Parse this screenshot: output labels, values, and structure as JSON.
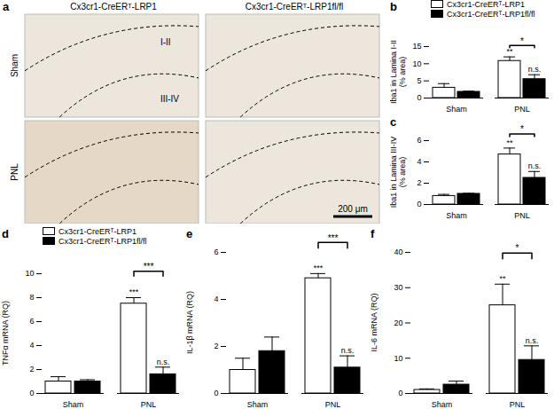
{
  "image_panel": {
    "label": "a",
    "columns": [
      "Cx3cr1-CreERᵀ-LRP1",
      "Cx3cr1-CreERᵀ-LRP1fl/fl"
    ],
    "rows": [
      "Sham",
      "PNL"
    ],
    "regions": [
      "I-II",
      "III-IV"
    ],
    "scale_bar": "200 μm"
  },
  "chart_data": [
    {
      "type": "bar",
      "label": "b",
      "y_label": [
        "Iba1 in Lamina I-II",
        "(% area)"
      ],
      "categories": [
        "Sham",
        "PNL"
      ],
      "series": [
        {
          "name": "Cx3cr1-CreERᵀ-LRP1",
          "color": "#ffffff",
          "values": [
            3.0,
            10.8
          ],
          "errors": [
            1.2,
            1.2
          ]
        },
        {
          "name": "Cx3cr1-CreERᵀ-LRP1fl/fl",
          "color": "#000000",
          "values": [
            1.8,
            5.5
          ],
          "errors": [
            0.2,
            1.3
          ]
        }
      ],
      "ylim": [
        0,
        15
      ],
      "yticks": [
        0,
        5,
        10,
        15
      ],
      "legend": "top",
      "annotations": [
        {
          "text": "**",
          "category": "PNL",
          "series": 0
        },
        {
          "text": "n.s.",
          "category": "PNL",
          "series": 1
        }
      ],
      "bracket": {
        "text": "*",
        "category": "PNL"
      }
    },
    {
      "type": "bar",
      "label": "c",
      "y_label": [
        "Iba1 in Lamina III-IV",
        "(% area)"
      ],
      "categories": [
        "Sham",
        "PNL"
      ],
      "series": [
        {
          "name": "Cx3cr1-CreERᵀ-LRP1",
          "color": "#ffffff",
          "values": [
            0.8,
            4.7
          ],
          "errors": [
            0.15,
            0.6
          ]
        },
        {
          "name": "Cx3cr1-CreERᵀ-LRP1fl/fl",
          "color": "#000000",
          "values": [
            1.0,
            2.5
          ],
          "errors": [
            0.05,
            0.6
          ]
        }
      ],
      "ylim": [
        0,
        6
      ],
      "yticks": [
        0,
        2,
        4,
        6
      ],
      "annotations": [
        {
          "text": "**",
          "category": "PNL",
          "series": 0
        },
        {
          "text": "n.s.",
          "category": "PNL",
          "series": 1
        }
      ],
      "bracket": {
        "text": "*",
        "category": "PNL"
      }
    },
    {
      "type": "bar",
      "label": "d",
      "y_label": [
        "TNFα mRNA (RQ)"
      ],
      "categories": [
        "Sham",
        "PNL"
      ],
      "series": [
        {
          "name": "Cx3cr1-CreERᵀ-LRP1",
          "color": "#ffffff",
          "values": [
            1.0,
            7.5
          ],
          "errors": [
            0.4,
            0.5
          ]
        },
        {
          "name": "Cx3cr1-CreERᵀ-LRP1fl/fl",
          "color": "#000000",
          "values": [
            1.0,
            1.6
          ],
          "errors": [
            0.15,
            0.6
          ]
        }
      ],
      "ylim": [
        0,
        10
      ],
      "yticks": [
        0,
        2,
        4,
        6,
        8,
        10
      ],
      "legend": "top",
      "annotations": [
        {
          "text": "***",
          "category": "PNL",
          "series": 0
        },
        {
          "text": "n.s.",
          "category": "PNL",
          "series": 1
        }
      ],
      "bracket": {
        "text": "***",
        "category": "PNL"
      }
    },
    {
      "type": "bar",
      "label": "e",
      "y_label": [
        "IL-1β mRNA (RQ)"
      ],
      "categories": [
        "Sham",
        "PNL"
      ],
      "series": [
        {
          "name": "Cx3cr1-CreERᵀ-LRP1",
          "color": "#ffffff",
          "values": [
            1.0,
            4.9
          ],
          "errors": [
            0.5,
            0.2
          ]
        },
        {
          "name": "Cx3cr1-CreERᵀ-LRP1fl/fl",
          "color": "#000000",
          "values": [
            1.8,
            1.1
          ],
          "errors": [
            0.6,
            0.5
          ]
        }
      ],
      "ylim": [
        0,
        6
      ],
      "yticks": [
        0,
        2,
        4,
        6
      ],
      "annotations": [
        {
          "text": "***",
          "category": "PNL",
          "series": 0
        },
        {
          "text": "n.s.",
          "category": "PNL",
          "series": 1
        }
      ],
      "bracket": {
        "text": "***",
        "category": "PNL"
      }
    },
    {
      "type": "bar",
      "label": "f",
      "y_label": [
        "IL-6 mRNA (RQ)"
      ],
      "categories": [
        "Sham",
        "PNL"
      ],
      "series": [
        {
          "name": "Cx3cr1-CreERᵀ-LRP1",
          "color": "#ffffff",
          "values": [
            1.0,
            25.0
          ],
          "errors": [
            0.3,
            6.0
          ]
        },
        {
          "name": "Cx3cr1-CreERᵀ-LRP1fl/fl",
          "color": "#000000",
          "values": [
            2.5,
            9.5
          ],
          "errors": [
            1.0,
            4.0
          ]
        }
      ],
      "ylim": [
        0,
        40
      ],
      "yticks": [
        0,
        10,
        20,
        30,
        40
      ],
      "annotations": [
        {
          "text": "**",
          "category": "PNL",
          "series": 0
        },
        {
          "text": "n.s.",
          "category": "PNL",
          "series": 1
        }
      ],
      "bracket": {
        "text": "*",
        "category": "PNL"
      }
    }
  ]
}
